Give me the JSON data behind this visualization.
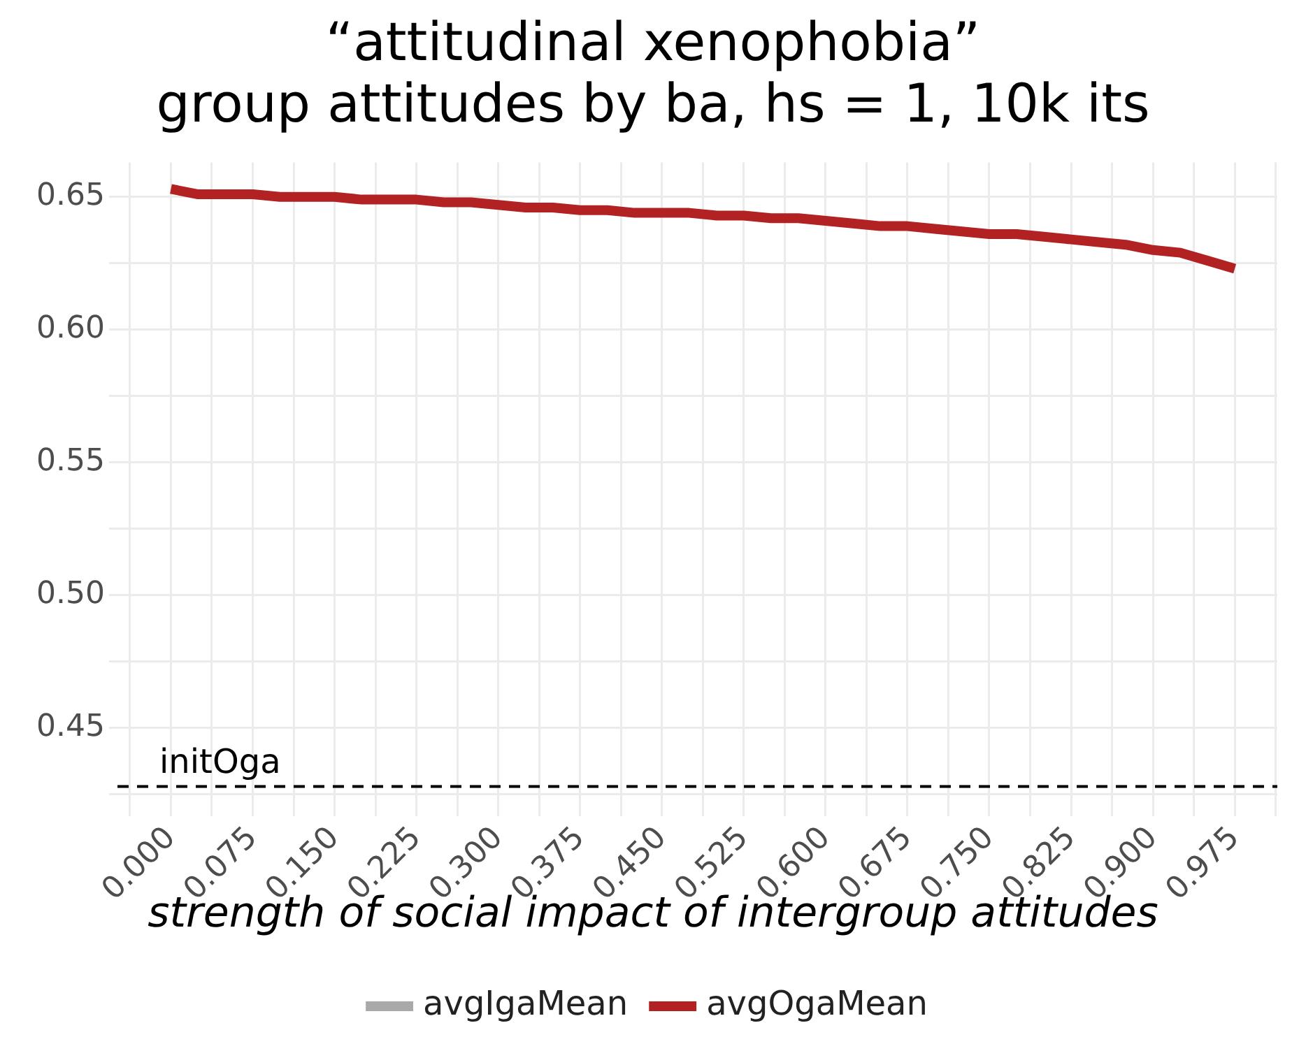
{
  "chart_data": {
    "type": "line",
    "title": "“attitudinal xenophobia”",
    "subtitle": "group attitudes by ba, hs = 1, 10k its",
    "xlabel": "strength of social impact of intergroup attitudes",
    "x": [
      0,
      0.025,
      0.05,
      0.075,
      0.1,
      0.125,
      0.15,
      0.175,
      0.2,
      0.225,
      0.25,
      0.275,
      0.3,
      0.325,
      0.35,
      0.375,
      0.4,
      0.425,
      0.45,
      0.475,
      0.5,
      0.525,
      0.55,
      0.575,
      0.6,
      0.625,
      0.65,
      0.675,
      0.7,
      0.725,
      0.75,
      0.775,
      0.8,
      0.825,
      0.85,
      0.875,
      0.9,
      0.925,
      0.95,
      0.975
    ],
    "series": [
      {
        "name": "avgIgaMean",
        "color": "#a9a9a9",
        "values": [
          null,
          null,
          null,
          null,
          null,
          null,
          null,
          null,
          null,
          null,
          null,
          null,
          null,
          null,
          null,
          null,
          null,
          null,
          null,
          null,
          null,
          null,
          null,
          null,
          null,
          null,
          null,
          null,
          null,
          null,
          null,
          null,
          null,
          null,
          null,
          null,
          null,
          null,
          null,
          null
        ]
      },
      {
        "name": "avgOgaMean",
        "color": "#b22222",
        "values": [
          0.653,
          0.651,
          0.651,
          0.651,
          0.65,
          0.65,
          0.65,
          0.649,
          0.649,
          0.649,
          0.648,
          0.648,
          0.647,
          0.646,
          0.646,
          0.645,
          0.645,
          0.644,
          0.644,
          0.644,
          0.643,
          0.643,
          0.642,
          0.642,
          0.641,
          0.64,
          0.639,
          0.639,
          0.638,
          0.637,
          0.636,
          0.636,
          0.635,
          0.634,
          0.633,
          0.632,
          0.63,
          0.629,
          0.626,
          0.623
        ]
      }
    ],
    "xlim": [
      -0.049,
      1.014
    ],
    "xticks": [
      {
        "value": -0.0375,
        "label": null
      },
      {
        "value": 0,
        "label": "0.000"
      },
      {
        "value": 0.0375,
        "label": null
      },
      {
        "value": 0.075,
        "label": "0.075"
      },
      {
        "value": 0.1125,
        "label": null
      },
      {
        "value": 0.15,
        "label": "0.150"
      },
      {
        "value": 0.1875,
        "label": null
      },
      {
        "value": 0.225,
        "label": "0.225"
      },
      {
        "value": 0.2625,
        "label": null
      },
      {
        "value": 0.3,
        "label": "0.300"
      },
      {
        "value": 0.3375,
        "label": null
      },
      {
        "value": 0.375,
        "label": "0.375"
      },
      {
        "value": 0.4125,
        "label": null
      },
      {
        "value": 0.45,
        "label": "0.450"
      },
      {
        "value": 0.4875,
        "label": null
      },
      {
        "value": 0.525,
        "label": "0.525"
      },
      {
        "value": 0.5625,
        "label": null
      },
      {
        "value": 0.6,
        "label": "0.600"
      },
      {
        "value": 0.6375,
        "label": null
      },
      {
        "value": 0.675,
        "label": "0.675"
      },
      {
        "value": 0.7125,
        "label": null
      },
      {
        "value": 0.75,
        "label": "0.750"
      },
      {
        "value": 0.7875,
        "label": null
      },
      {
        "value": 0.825,
        "label": "0.825"
      },
      {
        "value": 0.8625,
        "label": null
      },
      {
        "value": 0.9,
        "label": "0.900"
      },
      {
        "value": 0.9375,
        "label": null
      },
      {
        "value": 0.975,
        "label": "0.975"
      },
      {
        "value": 1.0125,
        "label": null
      }
    ],
    "ylim": [
      0.42,
      0.663
    ],
    "yticks": [
      {
        "value": 0.425,
        "label": null
      },
      {
        "value": 0.45,
        "label": "0.45"
      },
      {
        "value": 0.475,
        "label": null
      },
      {
        "value": 0.5,
        "label": "0.50"
      },
      {
        "value": 0.525,
        "label": null
      },
      {
        "value": 0.55,
        "label": "0.55"
      },
      {
        "value": 0.575,
        "label": null
      },
      {
        "value": 0.6,
        "label": "0.60"
      },
      {
        "value": 0.625,
        "label": null
      },
      {
        "value": 0.65,
        "label": "0.65"
      }
    ],
    "ref_lines": [
      {
        "axis": "y",
        "value": 0.428,
        "label": "initOga",
        "color": "#000000",
        "line_style": "dashed"
      }
    ],
    "grid": true,
    "legend": "bottom",
    "marker": "none",
    "line_style": "solid"
  }
}
